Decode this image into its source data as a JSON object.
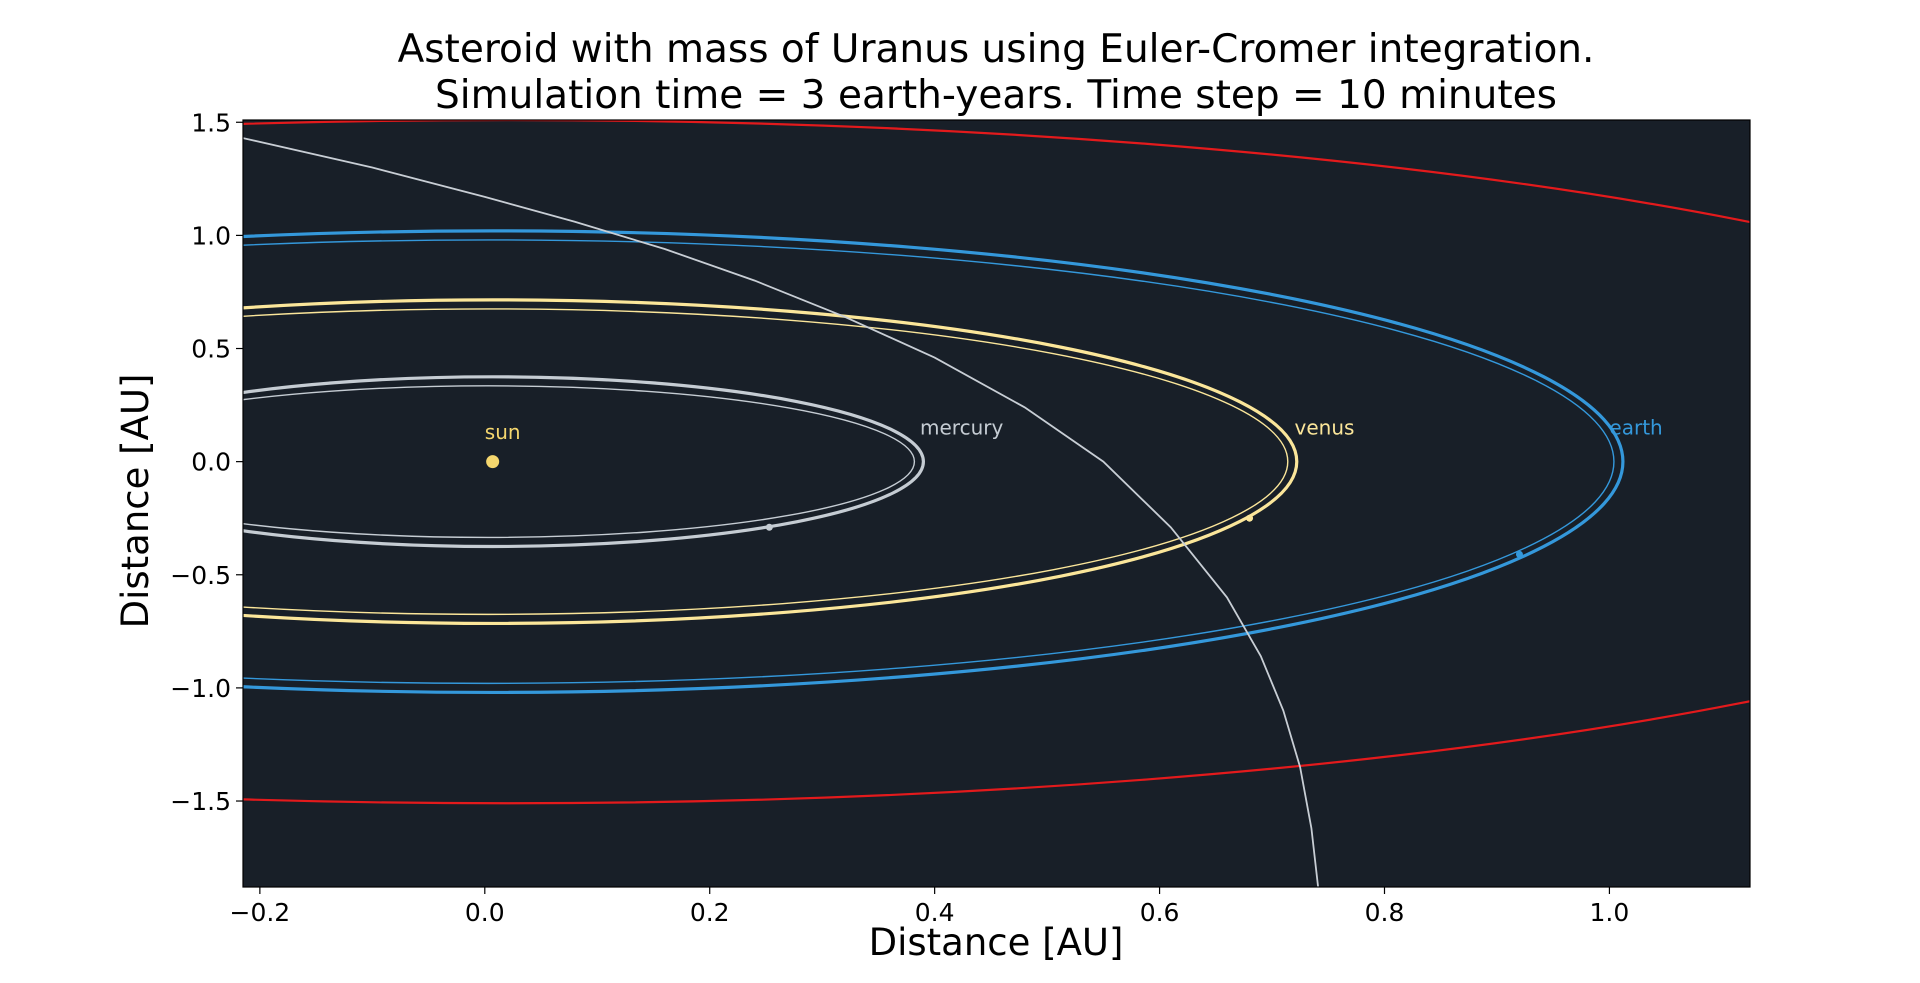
{
  "chart_data": {
    "type": "line",
    "title": "Asteroid with mass of Uranus using Euler-Cromer integration.",
    "subtitle": "Simulation time = 3 earth-years. Time step = 10 minutes",
    "xlabel": "Distance [AU]",
    "ylabel": "Distance [AU]",
    "xlim": [
      -0.215,
      1.125
    ],
    "ylim": [
      -1.88,
      1.51
    ],
    "grid": false,
    "background": "#181f28",
    "xticks": [
      {
        "value": -0.2,
        "label": "−0.2"
      },
      {
        "value": 0.0,
        "label": "0.0"
      },
      {
        "value": 0.2,
        "label": "0.2"
      },
      {
        "value": 0.4,
        "label": "0.4"
      },
      {
        "value": 0.6,
        "label": "0.6"
      },
      {
        "value": 0.8,
        "label": "0.8"
      },
      {
        "value": 1.0,
        "label": "1.0"
      }
    ],
    "yticks": [
      {
        "value": 1.5,
        "label": "1.5"
      },
      {
        "value": 1.0,
        "label": "1.0"
      },
      {
        "value": 0.5,
        "label": "0.5"
      },
      {
        "value": 0.0,
        "label": "0.0"
      },
      {
        "value": -0.5,
        "label": "−0.5"
      },
      {
        "value": -1.0,
        "label": "−1.0"
      },
      {
        "value": -1.5,
        "label": "−1.5"
      }
    ],
    "bodies": [
      {
        "label": "sun",
        "color": "#f5d76e",
        "position": [
          0.007,
          0.0
        ],
        "label_pos": [
          0.0,
          0.1
        ]
      },
      {
        "label": "mercury",
        "color": "#c5ccd3",
        "orbit_center": [
          0.007,
          0.0
        ],
        "orbit_radii": [
          0.383,
          0.375
        ],
        "marker": [
          0.253,
          -0.29
        ],
        "label_pos": [
          0.387,
          0.12
        ]
      },
      {
        "label": "venus",
        "color": "#fbe69a",
        "orbit_center": [
          0.007,
          0.0
        ],
        "orbit_radii": [
          0.715,
          0.715
        ],
        "marker": [
          0.68,
          -0.25
        ],
        "label_pos": [
          0.72,
          0.12
        ]
      },
      {
        "label": "earth",
        "color": "#3498db",
        "orbit_center": [
          0.007,
          0.0
        ],
        "orbit_radii": [
          1.005,
          1.02
        ],
        "marker": [
          0.92,
          -0.41
        ],
        "label_pos": [
          1.0,
          0.12
        ]
      }
    ],
    "outer_orbit": {
      "color": "#e31a1c",
      "center": [
        0.02,
        0.0
      ],
      "radii": [
        1.55,
        1.51
      ]
    },
    "asteroid_path": {
      "color": "#c8ced5",
      "points": [
        [
          -0.215,
          1.43
        ],
        [
          -0.1,
          1.3
        ],
        [
          0.0,
          1.17
        ],
        [
          0.08,
          1.06
        ],
        [
          0.16,
          0.94
        ],
        [
          0.24,
          0.8
        ],
        [
          0.32,
          0.64
        ],
        [
          0.4,
          0.46
        ],
        [
          0.48,
          0.24
        ],
        [
          0.55,
          0.0
        ],
        [
          0.61,
          -0.29
        ],
        [
          0.66,
          -0.6
        ],
        [
          0.69,
          -0.86
        ],
        [
          0.71,
          -1.1
        ],
        [
          0.725,
          -1.35
        ],
        [
          0.735,
          -1.62
        ],
        [
          0.741,
          -1.88
        ]
      ]
    }
  }
}
